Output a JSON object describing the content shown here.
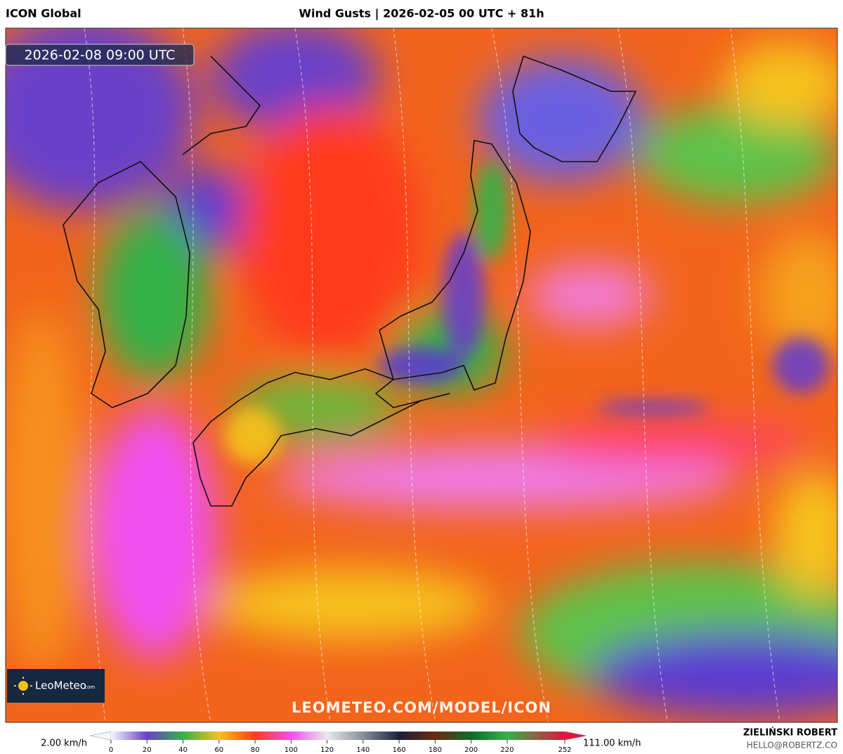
{
  "header": {
    "model": "ICON Global",
    "title": "Wind Gusts | 2026-02-05 00 UTC + 81h"
  },
  "map": {
    "valid_time": "2026-02-08 09:00 UTC",
    "logo": {
      "name": "LeoMeteo",
      "suffix": ".com"
    },
    "watermark": "LEOMETEO.COM/MODEL/ICON"
  },
  "colorbar": {
    "min_label": "2.00 km/h",
    "max_label": "111.00 km/h",
    "lim": [
      0,
      252
    ],
    "ticks": [
      0,
      20,
      40,
      60,
      80,
      100,
      120,
      140,
      160,
      180,
      200,
      220,
      252
    ],
    "colors": [
      "#f4f8ff",
      "#6a3fc8",
      "#33b24a",
      "#f6c21a",
      "#ff3a1c",
      "#f24ff2",
      "#e8e8ee",
      "#8a8f9a",
      "#1c1f3a",
      "#6a2a12",
      "#0f6a2a",
      "#33b24a",
      "#e0143c"
    ]
  },
  "footer": {
    "author": "ZIELIŃSKI ROBERT",
    "email": "HELLO@ROBERTZ.CO"
  }
}
